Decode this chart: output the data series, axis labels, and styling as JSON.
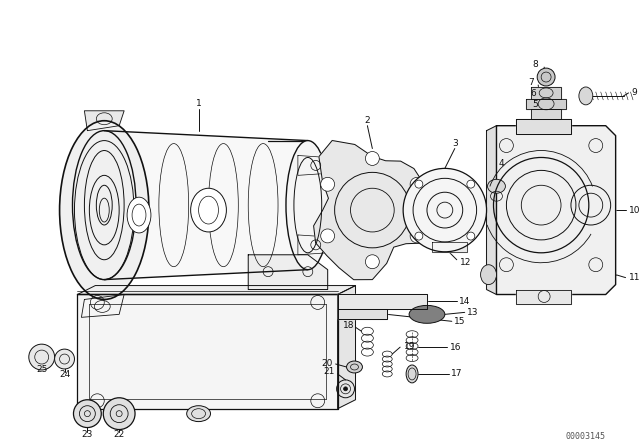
{
  "bg": "#ffffff",
  "lc": "#111111",
  "tc": "#111111",
  "code": "00003145",
  "fw": 6.4,
  "fh": 4.48,
  "dpi": 100,
  "lw": 0.7,
  "fs": 6.5,
  "fs_code": 6
}
